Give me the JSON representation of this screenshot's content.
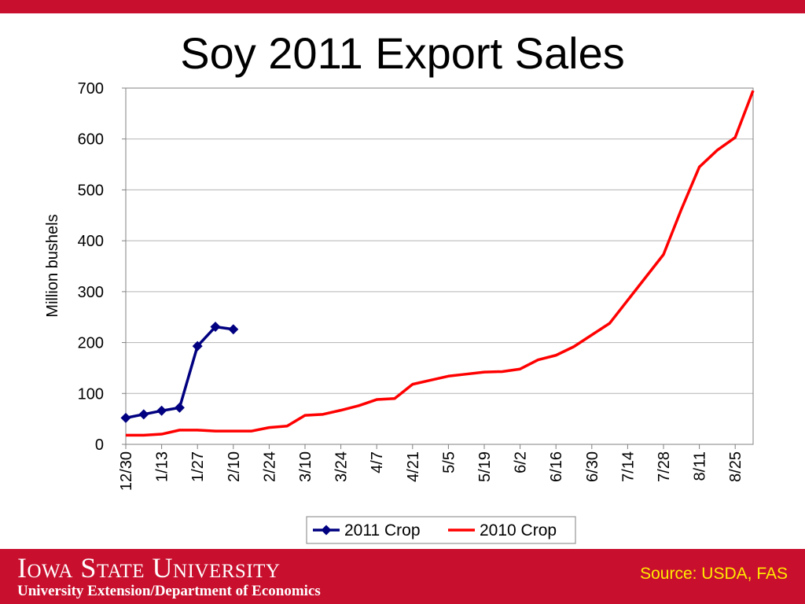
{
  "slide": {
    "title": "Soy 2011 Export Sales",
    "footer_university": "Iowa State University",
    "footer_department": "University Extension/Department of Economics",
    "source": "Source: USDA, FAS"
  },
  "colors": {
    "brand_red": "#c8102e",
    "series_2011": "#000080",
    "series_2010": "#ff0000",
    "source_text": "#ffeb00"
  },
  "chart_data": {
    "type": "line",
    "title": "",
    "xlabel": "",
    "ylabel": "Million bushels",
    "ylim": [
      0,
      700
    ],
    "yticks": [
      0,
      100,
      200,
      300,
      400,
      500,
      600,
      700
    ],
    "x_tick_labels": [
      "12/30",
      "1/13",
      "1/27",
      "2/10",
      "2/24",
      "3/10",
      "3/24",
      "4/7",
      "4/21",
      "5/5",
      "5/19",
      "6/2",
      "6/16",
      "6/30",
      "7/14",
      "7/28",
      "8/11",
      "8/25"
    ],
    "grid": "horizontal",
    "legend_position": "bottom",
    "series": [
      {
        "name": "2011 Crop",
        "color": "#000080",
        "marker": "diamond",
        "week_index": [
          0,
          1,
          2,
          3,
          4,
          5,
          6
        ],
        "values": [
          52,
          59,
          66,
          72,
          193,
          231,
          226
        ]
      },
      {
        "name": "2010 Crop",
        "color": "#ff0000",
        "marker": "none",
        "week_index": [
          0,
          1,
          2,
          3,
          4,
          5,
          6,
          7,
          8,
          9,
          10,
          11,
          12,
          13,
          14,
          15,
          16,
          17,
          18,
          19,
          20,
          21,
          22,
          23,
          24,
          25,
          26,
          27,
          28,
          29,
          30,
          31,
          32,
          33,
          34,
          35
        ],
        "values": [
          18,
          18,
          20,
          28,
          28,
          26,
          26,
          26,
          33,
          36,
          57,
          59,
          67,
          76,
          88,
          90,
          118,
          126,
          134,
          138,
          142,
          143,
          148,
          166,
          175,
          192,
          215,
          238,
          283,
          328,
          373,
          462,
          545,
          578,
          603,
          695
        ]
      }
    ]
  }
}
